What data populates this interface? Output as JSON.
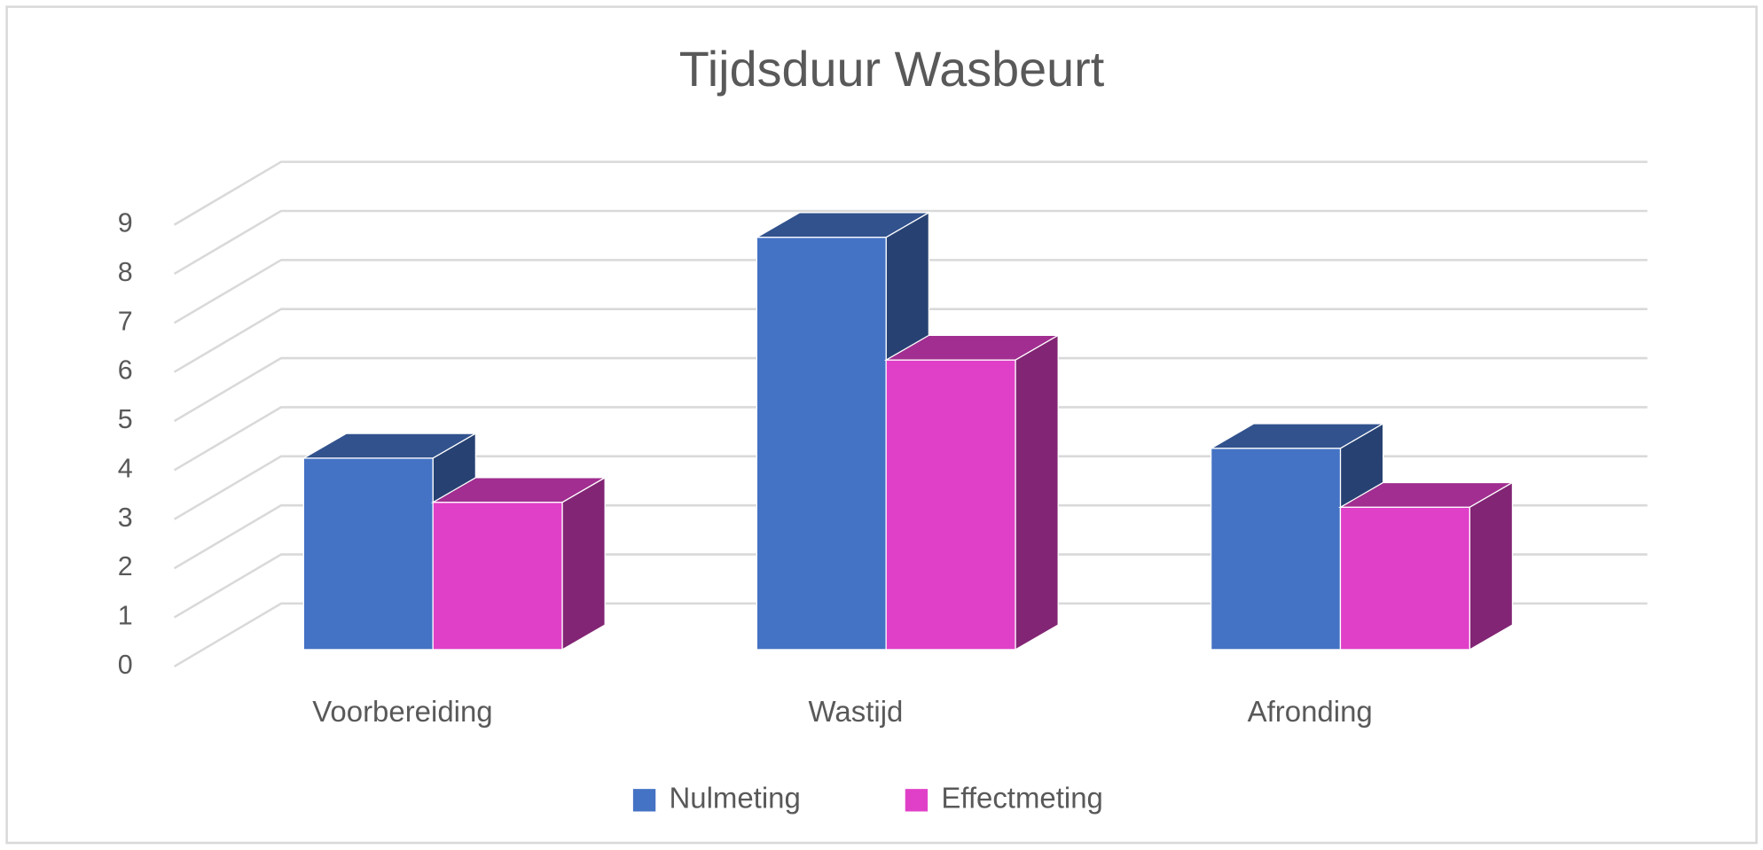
{
  "chart_data": {
    "type": "bar3d",
    "title": "Tijdsduur Wasbeurt",
    "categories": [
      "Voorbereiding",
      "Wastijd",
      "Afronding"
    ],
    "series": [
      {
        "name": "Nulmeting",
        "color": "#4472c4",
        "values": [
          3.9,
          8.4,
          4.1
        ]
      },
      {
        "name": "Effectmeting",
        "color": "#e040c8",
        "values": [
          3.0,
          5.9,
          2.9
        ]
      }
    ],
    "ylim": [
      0,
      9
    ],
    "yticks": [
      0,
      1,
      2,
      3,
      4,
      5,
      6,
      7,
      8,
      9
    ],
    "grid": true,
    "legend": "bottom"
  }
}
